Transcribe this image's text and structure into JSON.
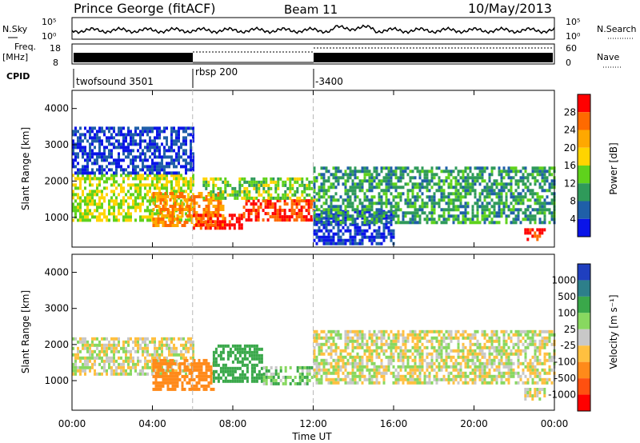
{
  "header": {
    "station": "Prince George (fitACF)",
    "beam": "Beam 11",
    "date": "10/May/2013"
  },
  "top_panel": {
    "nsky_label": "N.Sky",
    "nsearch_label": "N.Search",
    "freq_label_1": "Freq.",
    "freq_label_2": "[MHz]",
    "nave_label": "Nave",
    "cpid_label": "CPID",
    "nsky_ticks": [
      "10^5",
      "10^0"
    ],
    "nsearch_ticks": [
      "10^5",
      "10^0"
    ],
    "freq_ticks": [
      "18",
      "8"
    ],
    "nave_ticks": [
      "60",
      "0"
    ],
    "cpid_segments": [
      {
        "label": "twofsound 3501",
        "start_h": 0
      },
      {
        "label": "rbsp 200",
        "start_h": 6
      },
      {
        "label": "-3400",
        "start_h": 12
      }
    ]
  },
  "x_axis": {
    "label": "Time UT",
    "range_h": [
      0,
      24
    ],
    "ticks": [
      "00:00",
      "04:00",
      "08:00",
      "12:00",
      "16:00",
      "20:00",
      "00:00"
    ],
    "tick_hours": [
      0,
      4,
      8,
      12,
      16,
      20,
      24
    ],
    "dashed_markers_h": [
      6,
      12
    ]
  },
  "power_panel": {
    "ylabel": "Slant Range [km]",
    "cbar_label": "Power [dB]",
    "cbar_ticks": [
      "28",
      "24",
      "20",
      "16",
      "12",
      "8",
      "4"
    ],
    "cbar_colors": [
      "#ff0000",
      "#ff6a00",
      "#ffa800",
      "#ffd400",
      "#5fd21c",
      "#2f9a5a",
      "#1f5fa8",
      "#0a14e8"
    ]
  },
  "velocity_panel": {
    "ylabel": "Slant Range [km]",
    "cbar_label": "Velocity [m s⁻¹]",
    "cbar_ticks": [
      "1000",
      "500",
      "100",
      "25",
      "-25",
      "-100",
      "-500",
      "-1000"
    ],
    "cbar_colors": [
      "#1f3fbf",
      "#2d7f8a",
      "#3aa84a",
      "#88d860",
      "#c8c8c8",
      "#ffc040",
      "#ff8a1a",
      "#ff5010",
      "#ff0000"
    ]
  },
  "chart_data": [
    {
      "type": "heatmap",
      "title": "Power",
      "xlabel": "Time UT",
      "ylabel": "Slant Range [km]",
      "xlim": [
        0,
        24
      ],
      "ylim": [
        180,
        4500
      ],
      "colorbar_range": [
        0,
        32
      ],
      "regions": [
        {
          "t0": 0.0,
          "t1": 6.0,
          "r0": 900,
          "r1": 2200,
          "power_db": 16
        },
        {
          "t0": 0.0,
          "t1": 6.0,
          "r0": 2200,
          "r1": 3500,
          "power_db": 4
        },
        {
          "t0": 4.0,
          "t1": 7.5,
          "r0": 800,
          "r1": 1700,
          "power_db": 24
        },
        {
          "t0": 6.0,
          "t1": 8.5,
          "r0": 700,
          "r1": 1100,
          "power_db": 30
        },
        {
          "t0": 8.5,
          "t1": 12.0,
          "r0": 900,
          "r1": 1500,
          "power_db": 28
        },
        {
          "t0": 6.5,
          "t1": 12.0,
          "r0": 1500,
          "r1": 2100,
          "power_db": 14
        },
        {
          "t0": 12.0,
          "t1": 16.0,
          "r0": 300,
          "r1": 1200,
          "power_db": 4
        },
        {
          "t0": 12.0,
          "t1": 24.0,
          "r0": 900,
          "r1": 2400,
          "power_db": 10
        },
        {
          "t0": 22.5,
          "t1": 23.5,
          "r0": 350,
          "r1": 700,
          "power_db": 28
        }
      ]
    },
    {
      "type": "heatmap",
      "title": "Velocity",
      "xlabel": "Time UT",
      "ylabel": "Slant Range [km]",
      "xlim": [
        0,
        24
      ],
      "ylim": [
        180,
        4500
      ],
      "colorbar_range": [
        -1000,
        1000
      ],
      "regions": [
        {
          "t0": 0.0,
          "t1": 6.0,
          "r0": 1200,
          "r1": 2200,
          "velocity": 0
        },
        {
          "t0": 4.0,
          "t1": 7.0,
          "r0": 800,
          "r1": 1600,
          "velocity": -300
        },
        {
          "t0": 7.0,
          "t1": 9.5,
          "r0": 1000,
          "r1": 2000,
          "velocity": 300
        },
        {
          "t0": 9.5,
          "t1": 12.0,
          "r0": 900,
          "r1": 1400,
          "velocity": 100
        },
        {
          "t0": 12.0,
          "t1": 24.0,
          "r0": 900,
          "r1": 2400,
          "velocity": 0
        },
        {
          "t0": 22.5,
          "t1": 23.5,
          "r0": 500,
          "r1": 800,
          "velocity": 0
        }
      ]
    }
  ]
}
